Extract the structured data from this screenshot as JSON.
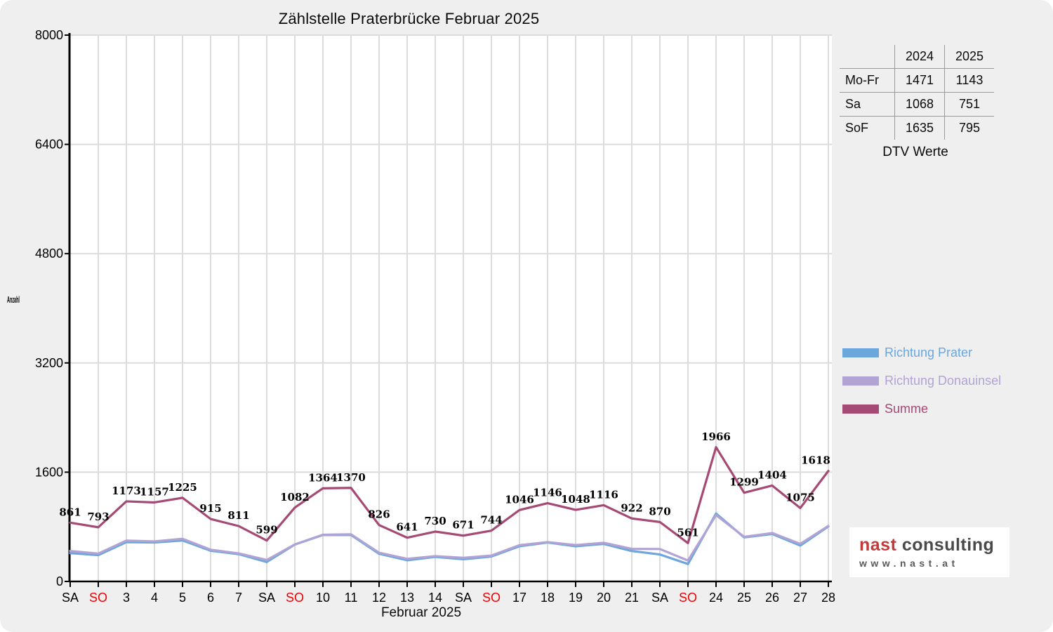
{
  "title": "Zählstelle Praterbrücke Februar 2025",
  "colors": {
    "panel_bg": "#efefef",
    "plot_bg": "#ffffff",
    "grid": "#dcdcdc",
    "axis": "#000000",
    "weekday_label": "#000000",
    "sunday_label": "#ee0000"
  },
  "dtv_table": {
    "col_headers": [
      "2024",
      "2025"
    ],
    "rows": [
      {
        "label": "Mo-Fr",
        "y2024": "1471",
        "y2025": "1143"
      },
      {
        "label": "Sa",
        "y2024": "1068",
        "y2025": "751"
      },
      {
        "label": "SoF",
        "y2024": "1635",
        "y2025": "795"
      }
    ],
    "caption": "DTV Werte"
  },
  "logo": {
    "brand_primary": "nast",
    "brand_secondary": "consulting",
    "website": "www.nast.at",
    "primary_color": "#c23a3a",
    "secondary_color": "#4a4a4a",
    "website_color": "#5a5a5a"
  },
  "chart_data": {
    "type": "line",
    "title": "Zählstelle Praterbrücke Februar 2025",
    "xlabel": "Februar 2025",
    "ylabel": "Anzahl",
    "ylim": [
      0,
      8000
    ],
    "yticks": [
      0,
      1600,
      3200,
      4800,
      6400,
      8000
    ],
    "grid": true,
    "legend_position": "right",
    "categories": [
      "SA",
      "SO",
      "3",
      "4",
      "5",
      "6",
      "7",
      "SA",
      "SO",
      "10",
      "11",
      "12",
      "13",
      "14",
      "SA",
      "SO",
      "17",
      "18",
      "19",
      "20",
      "21",
      "SA",
      "SO",
      "24",
      "25",
      "26",
      "27",
      "28"
    ],
    "sunday_indices": [
      1,
      8,
      15,
      22
    ],
    "series": [
      {
        "name": "Richtung Prater",
        "color": "#6ba6dc",
        "values": [
          415,
          385,
          575,
          570,
          600,
          450,
          400,
          285,
          540,
          680,
          680,
          405,
          310,
          360,
          325,
          365,
          515,
          570,
          515,
          550,
          445,
          395,
          255,
          995,
          645,
          695,
          525,
          805
        ]
      },
      {
        "name": "Richtung Donauinsel",
        "color": "#b1a4d5",
        "values": [
          446,
          408,
          598,
          587,
          625,
          465,
          411,
          314,
          542,
          684,
          690,
          421,
          331,
          370,
          346,
          379,
          531,
          576,
          533,
          566,
          477,
          475,
          306,
          971,
          654,
          709,
          550,
          813
        ]
      },
      {
        "name": "Summe",
        "color": "#a54a74",
        "show_labels": true,
        "values": [
          861,
          793,
          1173,
          1157,
          1225,
          915,
          811,
          599,
          1082,
          1364,
          1370,
          826,
          641,
          730,
          671,
          744,
          1046,
          1146,
          1048,
          1116,
          922,
          870,
          561,
          1966,
          1299,
          1404,
          1075,
          1618
        ]
      }
    ]
  }
}
